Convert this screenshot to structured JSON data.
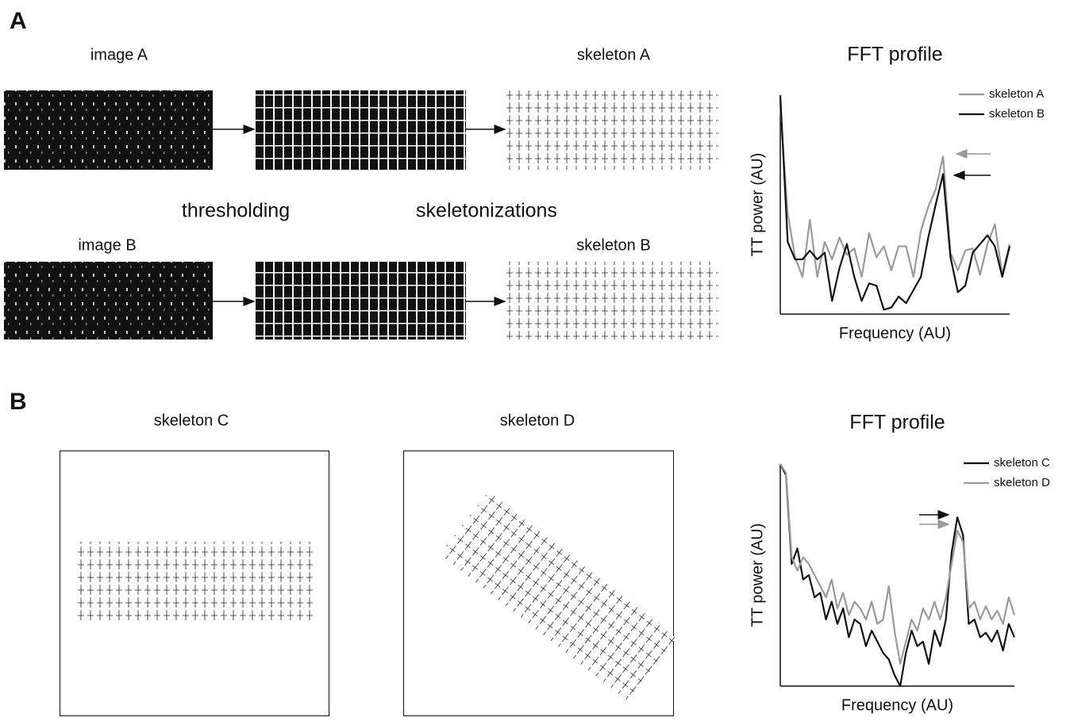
{
  "labels": {
    "panel_a": "A",
    "image_a": "image A",
    "skeleton_a": "skeleton A",
    "thresholding": "thresholding",
    "skeletonizations": "skeletonizations",
    "image_b": "image B",
    "skeleton_b": "skeleton B",
    "panel_b": "B",
    "skeleton_c": "skeleton C",
    "skeleton_d": "skeleton D"
  },
  "chart_data": [
    {
      "type": "line",
      "title": "FFT profile",
      "y_label": "TT power (AU)",
      "x_label": "Frequency (AU)",
      "legend": "upper right",
      "x": [
        0,
        1,
        2,
        3,
        4,
        5,
        6,
        7,
        8,
        9,
        10,
        11,
        12,
        13,
        14,
        15,
        16,
        17,
        18,
        19,
        20,
        21,
        22,
        23,
        24,
        25,
        26,
        27,
        28,
        29,
        30,
        31
      ],
      "xlim": [
        0,
        31
      ],
      "ylim": [
        0,
        100
      ],
      "series": [
        {
          "name": "skeleton A",
          "color": "#9a9a9a",
          "values": [
            95,
            46,
            26,
            17,
            43,
            17,
            33,
            25,
            35,
            27,
            30,
            17,
            37,
            26,
            31,
            20,
            31,
            31,
            17,
            38,
            49,
            57,
            72,
            28,
            20,
            29,
            30,
            18,
            32,
            41,
            18,
            32
          ]
        },
        {
          "name": "skeleton B",
          "color": "#111111",
          "values": [
            100,
            33,
            25,
            25,
            29,
            25,
            28,
            6,
            21,
            32,
            17,
            6,
            14,
            13,
            2,
            3,
            8,
            5,
            11,
            17,
            35,
            50,
            64,
            26,
            10,
            13,
            28,
            32,
            36,
            31,
            17,
            31
          ]
        }
      ]
    },
    {
      "type": "line",
      "title": "FFT profile",
      "y_label": "TT power (AU)",
      "x_label": "Frequency (AU)",
      "legend": "upper right",
      "x": [
        0,
        1,
        2,
        3,
        4,
        5,
        6,
        7,
        8,
        9,
        10,
        11,
        12,
        13,
        14,
        15,
        16,
        17,
        18,
        19,
        20,
        21,
        22,
        23,
        24,
        25,
        26,
        27,
        28,
        29,
        30,
        31,
        32,
        33,
        34,
        35,
        36,
        37,
        38,
        39,
        40,
        41
      ],
      "xlim": [
        0,
        41
      ],
      "ylim": [
        0,
        100
      ],
      "series": [
        {
          "name": "skeleton C",
          "color": "#111111",
          "values": [
            100,
            95,
            55,
            62,
            48,
            50,
            40,
            42,
            30,
            38,
            28,
            35,
            22,
            30,
            28,
            18,
            25,
            20,
            15,
            12,
            5,
            0,
            15,
            25,
            18,
            20,
            10,
            25,
            18,
            30,
            60,
            76,
            68,
            28,
            30,
            22,
            24,
            20,
            25,
            16,
            28,
            22
          ]
        },
        {
          "name": "skeleton D",
          "color": "#9a9a9a",
          "values": [
            100,
            96,
            58,
            52,
            58,
            55,
            50,
            45,
            40,
            48,
            35,
            42,
            32,
            38,
            35,
            30,
            38,
            28,
            30,
            45,
            25,
            10,
            20,
            30,
            25,
            35,
            30,
            38,
            30,
            40,
            55,
            70,
            65,
            35,
            38,
            30,
            36,
            30,
            34,
            28,
            40,
            32
          ]
        }
      ]
    }
  ]
}
